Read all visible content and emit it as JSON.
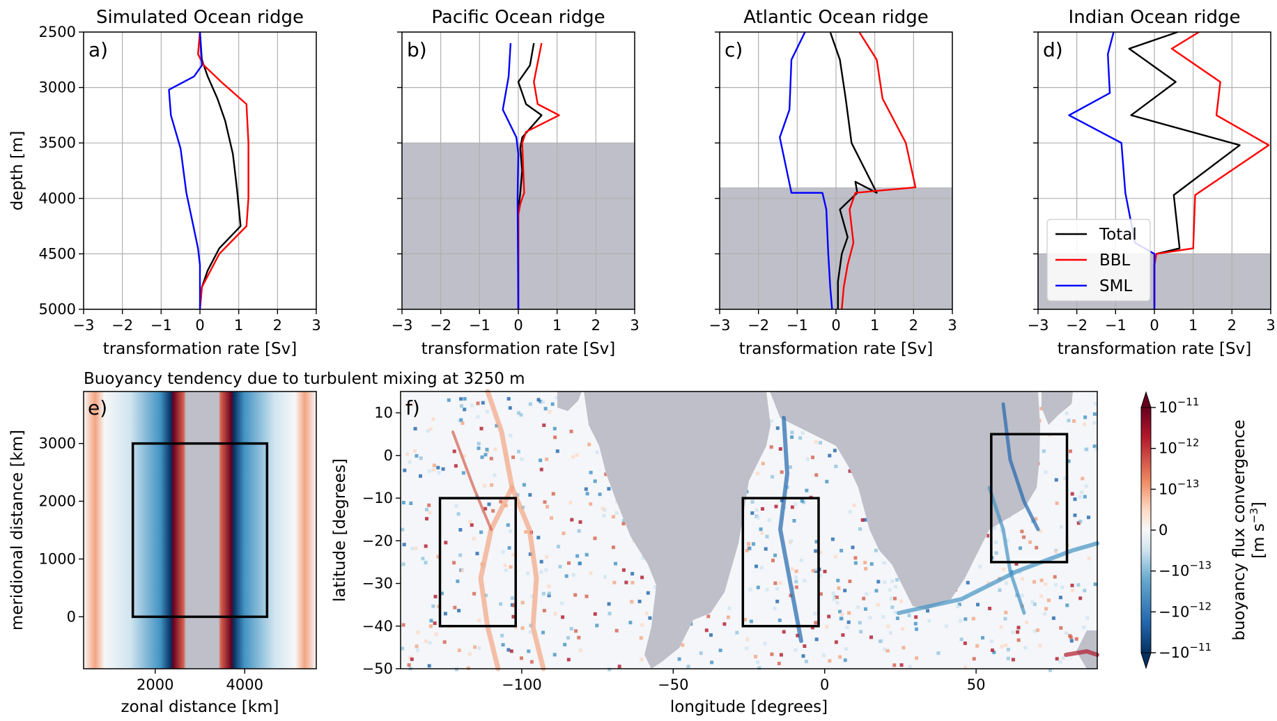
{
  "chart_data": [
    {
      "type": "line",
      "panel_label": "a)",
      "title": "Simulated Ocean ridge",
      "xlabel": "transformation rate [Sv]",
      "ylabel": "depth [m]",
      "xlim": [
        -3,
        3
      ],
      "ylim": [
        5000,
        2500
      ],
      "xticks": [
        -3,
        -2,
        -1,
        0,
        1,
        2,
        3
      ],
      "yticks": [
        2500,
        3000,
        3500,
        4000,
        4500,
        5000
      ],
      "grid": true,
      "shading_below_depth": null,
      "series": [
        {
          "name": "Total",
          "color": "#000000",
          "points": [
            [
              0,
              2500
            ],
            [
              0.05,
              2750
            ],
            [
              0.2,
              2900
            ],
            [
              0.45,
              3100
            ],
            [
              0.65,
              3300
            ],
            [
              0.85,
              3600
            ],
            [
              0.95,
              3900
            ],
            [
              1.05,
              4250
            ],
            [
              0.5,
              4450
            ],
            [
              0.2,
              4650
            ],
            [
              0.05,
              4800
            ],
            [
              0,
              5000
            ]
          ]
        },
        {
          "name": "BBL",
          "color": "#ff0000",
          "points": [
            [
              0,
              2500
            ],
            [
              -0.05,
              2700
            ],
            [
              0.1,
              2800
            ],
            [
              0.55,
              2950
            ],
            [
              1.2,
              3150
            ],
            [
              1.25,
              3500
            ],
            [
              1.25,
              4000
            ],
            [
              1.2,
              4250
            ],
            [
              0.5,
              4500
            ],
            [
              0.2,
              4700
            ],
            [
              0.05,
              4800
            ],
            [
              0,
              5000
            ]
          ]
        },
        {
          "name": "SML",
          "color": "#0000ff",
          "points": [
            [
              0,
              2500
            ],
            [
              0.05,
              2800
            ],
            [
              -0.15,
              2900
            ],
            [
              -0.8,
              3020
            ],
            [
              -0.75,
              3250
            ],
            [
              -0.5,
              3550
            ],
            [
              -0.35,
              3950
            ],
            [
              -0.2,
              4200
            ],
            [
              -0.05,
              4450
            ],
            [
              0,
              4600
            ],
            [
              0,
              5000
            ]
          ]
        }
      ]
    },
    {
      "type": "line",
      "panel_label": "b)",
      "title": "Pacific Ocean ridge",
      "xlabel": "transformation rate [Sv]",
      "xlim": [
        -3,
        3
      ],
      "ylim": [
        5000,
        2500
      ],
      "xticks": [
        -3,
        -2,
        -1,
        0,
        1,
        2,
        3
      ],
      "grid": true,
      "shading_below_depth": 3500,
      "series": [
        {
          "name": "Total",
          "color": "#000000",
          "points": [
            [
              0.4,
              2600
            ],
            [
              0.3,
              2800
            ],
            [
              0,
              2950
            ],
            [
              0.2,
              3150
            ],
            [
              0.6,
              3250
            ],
            [
              0.1,
              3450
            ],
            [
              0.05,
              3550
            ],
            [
              0.1,
              3750
            ],
            [
              0.05,
              3950
            ],
            [
              0,
              4100
            ],
            [
              0,
              5000
            ]
          ]
        },
        {
          "name": "BBL",
          "color": "#ff0000",
          "points": [
            [
              0.6,
              2600
            ],
            [
              0.4,
              2950
            ],
            [
              0.5,
              3150
            ],
            [
              1.05,
              3250
            ],
            [
              0.2,
              3400
            ],
            [
              0.1,
              3500
            ],
            [
              0.15,
              3950
            ],
            [
              0.05,
              4050
            ],
            [
              0,
              4150
            ],
            [
              0,
              5000
            ]
          ]
        },
        {
          "name": "SML",
          "color": "#0000ff",
          "points": [
            [
              -0.2,
              2600
            ],
            [
              -0.25,
              2900
            ],
            [
              -0.4,
              3200
            ],
            [
              -0.05,
              3450
            ],
            [
              0,
              3600
            ],
            [
              -0.02,
              4000
            ],
            [
              0,
              5000
            ]
          ]
        }
      ]
    },
    {
      "type": "line",
      "panel_label": "c)",
      "title": "Atlantic Ocean ridge",
      "xlabel": "transformation rate [Sv]",
      "xlim": [
        -3,
        3
      ],
      "ylim": [
        5000,
        2500
      ],
      "xticks": [
        -3,
        -2,
        -1,
        0,
        1,
        2,
        3
      ],
      "grid": true,
      "shading_below_depth": 3900,
      "series": [
        {
          "name": "Total",
          "color": "#000000",
          "points": [
            [
              -0.15,
              2500
            ],
            [
              0.1,
              2750
            ],
            [
              0.25,
              3100
            ],
            [
              0.4,
              3500
            ],
            [
              1.05,
              3950
            ],
            [
              0.5,
              3850
            ],
            [
              0.55,
              3950
            ],
            [
              0.1,
              4100
            ],
            [
              0.3,
              4350
            ],
            [
              0.15,
              4500
            ],
            [
              0.05,
              4750
            ],
            [
              0.05,
              5000
            ]
          ]
        },
        {
          "name": "BBL",
          "color": "#ff0000",
          "points": [
            [
              0.6,
              2500
            ],
            [
              1.05,
              2750
            ],
            [
              1.2,
              3100
            ],
            [
              1.8,
              3500
            ],
            [
              2.05,
              3900
            ],
            [
              0.5,
              3950
            ],
            [
              0.35,
              4100
            ],
            [
              0.45,
              4400
            ],
            [
              0.3,
              4600
            ],
            [
              0.2,
              4800
            ],
            [
              0.15,
              5000
            ]
          ]
        },
        {
          "name": "SML",
          "color": "#0000ff",
          "points": [
            [
              -0.8,
              2500
            ],
            [
              -1.15,
              2750
            ],
            [
              -1.2,
              3200
            ],
            [
              -1.45,
              3450
            ],
            [
              -1.15,
              3950
            ],
            [
              -0.35,
              3950
            ],
            [
              -0.25,
              4100
            ],
            [
              -0.2,
              4500
            ],
            [
              -0.15,
              4800
            ],
            [
              -0.1,
              5000
            ]
          ]
        }
      ]
    },
    {
      "type": "line",
      "panel_label": "d)",
      "title": "Indian Ocean ridge",
      "xlabel": "transformation rate [Sv]",
      "xlim": [
        -3,
        3
      ],
      "ylim": [
        5000,
        2500
      ],
      "xticks": [
        -3,
        -2,
        -1,
        0,
        1,
        2,
        3
      ],
      "grid": true,
      "shading_below_depth": 4500,
      "legend": {
        "placement": "lower-left",
        "entries": [
          "Total",
          "BBL",
          "SML"
        ]
      },
      "series": [
        {
          "name": "Total",
          "color": "#000000",
          "points": [
            [
              0.6,
              2500
            ],
            [
              -0.65,
              2650
            ],
            [
              0.55,
              2950
            ],
            [
              -0.6,
              3250
            ],
            [
              2.2,
              3520
            ],
            [
              0.5,
              3970
            ],
            [
              0.65,
              4450
            ],
            [
              0.05,
              4500
            ],
            [
              0,
              4600
            ],
            [
              0,
              5000
            ]
          ]
        },
        {
          "name": "BBL",
          "color": "#ff0000",
          "points": [
            [
              1.15,
              2500
            ],
            [
              0.45,
              2650
            ],
            [
              1.7,
              2950
            ],
            [
              1.6,
              3250
            ],
            [
              2.95,
              3520
            ],
            [
              1.05,
              3970
            ],
            [
              1,
              4450
            ],
            [
              0.05,
              4500
            ],
            [
              0,
              4600
            ],
            [
              0,
              5000
            ]
          ]
        },
        {
          "name": "SML",
          "color": "#0000ff",
          "points": [
            [
              -1.05,
              2500
            ],
            [
              -1.2,
              2700
            ],
            [
              -1.15,
              3050
            ],
            [
              -2.2,
              3250
            ],
            [
              -0.85,
              3500
            ],
            [
              -0.75,
              3950
            ],
            [
              -0.5,
              4400
            ],
            [
              0,
              4500
            ],
            [
              0,
              5000
            ]
          ]
        }
      ]
    },
    {
      "type": "heatmap",
      "panel_label": "e)",
      "title": "Buoyancy tendency due to turbulent mixing at 3250 m",
      "xlabel": "zonal distance [km]",
      "ylabel": "meridional distance [km]",
      "xlim": [
        400,
        5600
      ],
      "ylim": [
        -900,
        3900
      ],
      "xticks": [
        2000,
        4000
      ],
      "yticks": [
        0,
        1000,
        2000,
        3000
      ],
      "box": {
        "x": [
          1500,
          4500
        ],
        "y": [
          0,
          3000
        ]
      }
    },
    {
      "type": "heatmap",
      "panel_label": "f)",
      "xlabel": "longitude [degrees]",
      "ylabel": "latitude [degrees]",
      "xlim": [
        -140,
        90
      ],
      "ylim": [
        -50,
        15
      ],
      "xticks": [
        -100,
        -50,
        0,
        50
      ],
      "yticks": [
        10,
        0,
        -10,
        -20,
        -30,
        -40,
        -50
      ],
      "boxes": [
        {
          "name": "Pacific",
          "x": [
            -127,
            -102
          ],
          "y": [
            -40,
            -10
          ]
        },
        {
          "name": "Atlantic",
          "x": [
            -27,
            -2
          ],
          "y": [
            -40,
            -10
          ]
        },
        {
          "name": "Indian",
          "x": [
            55,
            80
          ],
          "y": [
            -25,
            5
          ]
        }
      ]
    }
  ],
  "colorbar": {
    "label_line1": "buoyancy flux convergence",
    "label_line2": "[m s",
    "label_sup": "−3",
    "label_close": "]",
    "ticks": [
      {
        "base": "10",
        "exp": "−11"
      },
      {
        "base": "10",
        "exp": "−12"
      },
      {
        "base": "10",
        "exp": "−13"
      },
      {
        "base": "0",
        "exp": ""
      },
      {
        "base": "−10",
        "exp": "−13"
      },
      {
        "base": "−10",
        "exp": "−12"
      },
      {
        "base": "−10",
        "exp": "−11"
      }
    ]
  },
  "colors": {
    "land": "#bfbfc9",
    "red_dark": "#67001f",
    "red": "#d6604d",
    "white": "#f7f7f7",
    "blue": "#4393c3",
    "blue_dark": "#053061"
  }
}
